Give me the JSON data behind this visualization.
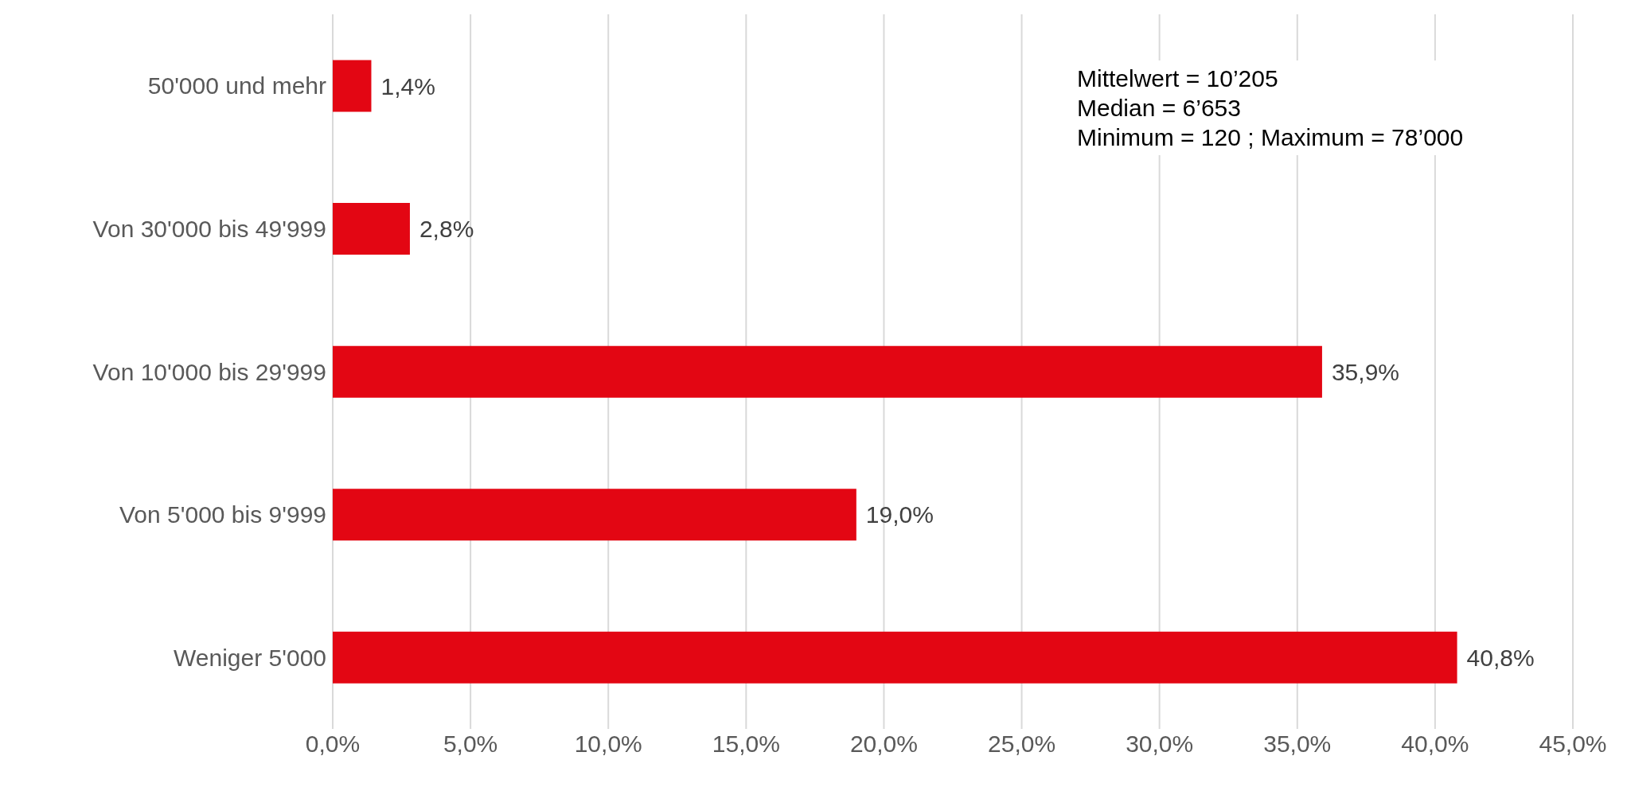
{
  "chart_data": {
    "type": "bar",
    "orientation": "horizontal",
    "categories": [
      "50'000 und mehr",
      "Von 30'000 bis 49'999",
      "Von 10'000 bis 29'999",
      "Von 5'000 bis 9'999",
      "Weniger 5'000"
    ],
    "values": [
      1.4,
      2.8,
      35.9,
      19.0,
      40.8
    ],
    "value_labels": [
      "1,4%",
      "2,8%",
      "35,9%",
      "19,0%",
      "40,8%"
    ],
    "color": "#e30613",
    "xlim": [
      0,
      45
    ],
    "xticks": [
      {
        "value": 0,
        "label": "0,0%"
      },
      {
        "value": 5,
        "label": "5,0%"
      },
      {
        "value": 10,
        "label": "10,0%"
      },
      {
        "value": 15,
        "label": "15,0%"
      },
      {
        "value": 20,
        "label": "20,0%"
      },
      {
        "value": 25,
        "label": "25,0%"
      },
      {
        "value": 30,
        "label": "30,0%"
      },
      {
        "value": 35,
        "label": "35,0%"
      },
      {
        "value": 40,
        "label": "40,0%"
      },
      {
        "value": 45,
        "label": "45,0%"
      }
    ],
    "grid": "x",
    "annotations": [
      "Mittelwert = 10’205",
      "Median = 6’653",
      "Minimum = 120 ; Maximum = 78’000"
    ]
  }
}
